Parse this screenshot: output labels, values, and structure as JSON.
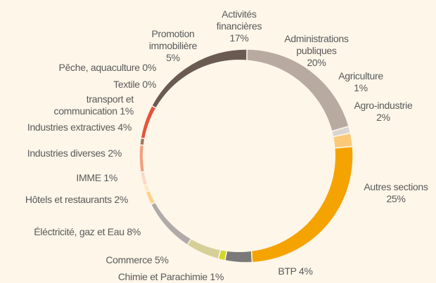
{
  "chart_data": {
    "type": "donut",
    "categories": [
      "Activités financières",
      "Administrations publiques",
      "Agriculture",
      "Agro-industrie",
      "Autres sections",
      "BTP",
      "Chimie et Parachimie",
      "Commerce",
      "Éléctricité, gaz et Eau",
      "Hôtels et restaurants",
      "IMME",
      "Industries diverses",
      "Industries extractives",
      "transport et communication",
      "Textile",
      "Pêche, aquaculture",
      "Promotion immobilière"
    ],
    "values": [
      17,
      20,
      1,
      2,
      25,
      4,
      1,
      5,
      8,
      2,
      1,
      2,
      4,
      1,
      0,
      0,
      5
    ],
    "value_labels": [
      "17%",
      "20%",
      "1%",
      "2%",
      "25%",
      "4%",
      "1%",
      "5%",
      "8%",
      "2%",
      "1%",
      "2%",
      "4%",
      "1%",
      "0%",
      "0%",
      "5%"
    ],
    "colors": [
      "#6b5a52",
      "#b8aaa0",
      "#d9d6d2",
      "#fcc978",
      "#f5a300",
      "#7a7a7a",
      "#d4d62a",
      "#d6cf98",
      "#b0aaa8",
      "#fcd38a",
      "#fde6c4",
      "#fbd9c4",
      "#f2a07e",
      "#a0785a",
      "#c0121a",
      "#8a5a40",
      "#e5533a"
    ]
  }
}
